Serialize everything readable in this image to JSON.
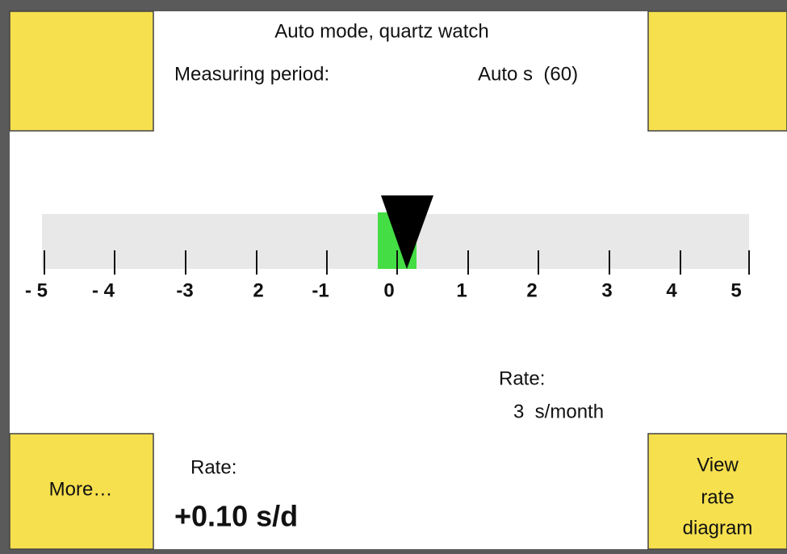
{
  "header": {
    "title": "Auto mode, quartz watch",
    "period_label": "Measuring period:",
    "period_value": "Auto s  (60)"
  },
  "scale": {
    "labels": [
      "- 5",
      "- 4",
      "-3",
      "2",
      "-1",
      "0",
      "1",
      "2",
      "3",
      "4",
      "5"
    ]
  },
  "monthly": {
    "label": "Rate:",
    "value": "3  s/month"
  },
  "daily": {
    "label": "Rate:",
    "value": "+0.10 s/d"
  },
  "buttons": {
    "more": "More…",
    "diagram": [
      "View",
      "rate",
      "diagram"
    ]
  }
}
